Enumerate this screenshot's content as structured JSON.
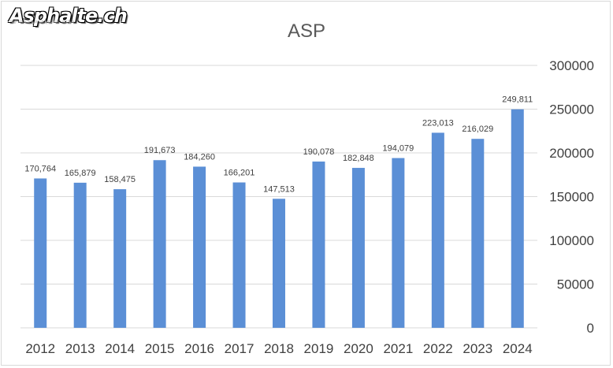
{
  "brand": {
    "logo_text": "Asphalte.ch"
  },
  "chart_data": {
    "type": "bar",
    "title": "ASP",
    "xlabel": "",
    "ylabel": "",
    "categories": [
      "2012",
      "2013",
      "2014",
      "2015",
      "2016",
      "2017",
      "2018",
      "2019",
      "2020",
      "2021",
      "2022",
      "2023",
      "2024"
    ],
    "values": [
      170764,
      165879,
      158475,
      191673,
      184260,
      166201,
      147513,
      190078,
      182848,
      194079,
      223013,
      216029,
      249811
    ],
    "data_labels": [
      "170,764",
      "165,879",
      "158,475",
      "191,673",
      "184,260",
      "166,201",
      "147,513",
      "190,078",
      "182,848",
      "194,079",
      "223,013",
      "216,029",
      "249,811"
    ],
    "ylim": [
      0,
      300000
    ],
    "yticks": [
      "0",
      "50000",
      "100000",
      "150000",
      "200000",
      "250000",
      "300000"
    ],
    "y_axis_side": "right",
    "grid": true,
    "legend": "none",
    "bar_color": "#5b8fd6"
  }
}
